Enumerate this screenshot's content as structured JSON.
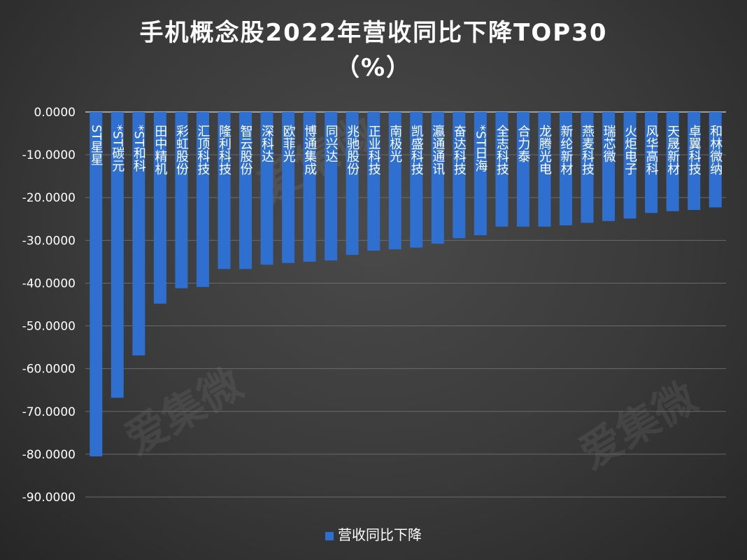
{
  "chart_data": {
    "type": "bar",
    "title": "手机概念股2022年营收同比下降TOP30",
    "subtitle": "（%）",
    "categories": [
      "ST星星",
      "*ST碳元",
      "*ST和科",
      "田中精机",
      "彩虹股份",
      "汇顶科技",
      "隆利科技",
      "智云股份",
      "深科达",
      "欧菲光",
      "博通集成",
      "同兴达",
      "兆驰股份",
      "正业科技",
      "南极光",
      "凯盛科技",
      "瀛通通讯",
      "奋达科技",
      "*ST日海",
      "全志科技",
      "合力泰",
      "龙腾光电",
      "新纶新材",
      "燕麦科技",
      "瑞芯微",
      "火炬电子",
      "风华高科",
      "天晟新材",
      "卓翼科技",
      "和林微纳"
    ],
    "series": [
      {
        "name": "营收同比下降",
        "values": [
          -80.5,
          -66.8,
          -56.9,
          -44.8,
          -41.2,
          -40.9,
          -36.7,
          -36.7,
          -35.7,
          -35.3,
          -35.0,
          -34.7,
          -33.4,
          -32.4,
          -32.1,
          -31.7,
          -30.8,
          -29.5,
          -28.8,
          -26.8,
          -26.8,
          -26.8,
          -26.5,
          -25.9,
          -25.5,
          -24.9,
          -23.6,
          -23.2,
          -22.9,
          -22.3
        ],
        "color": "#2e6fd0"
      }
    ],
    "yticks": [
      "0.0000",
      "-10.0000",
      "-20.0000",
      "-30.0000",
      "-40.0000",
      "-50.0000",
      "-60.0000",
      "-70.0000",
      "-80.0000",
      "-90.0000"
    ],
    "ylim": [
      -90,
      0
    ],
    "grid": true,
    "legend_position": "bottom",
    "label_position": "inside-bar-vertical"
  },
  "watermark": {
    "text": "爱集微",
    "url": "ijiwei.com"
  }
}
